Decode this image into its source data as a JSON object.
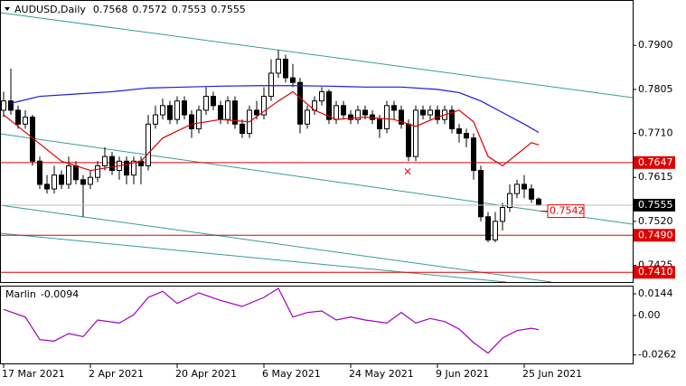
{
  "chart_data": [
    {
      "type": "candlestick",
      "title": "AUDUSD,Daily",
      "ylim": [
        0.7389,
        0.7998
      ],
      "xlim": [
        -0.5,
        87
      ],
      "yticks": [
        {
          "value": 0.79,
          "label": "0.7900"
        },
        {
          "value": 0.7805,
          "label": "0.7805"
        },
        {
          "value": 0.771,
          "label": "0.7710"
        },
        {
          "value": 0.7615,
          "label": "0.7615"
        },
        {
          "value": 0.752,
          "label": "0.7520"
        },
        {
          "value": 0.7425,
          "label": "0.7425"
        }
      ],
      "xticks": [
        {
          "value": 0,
          "label": "17 Mar 2021"
        },
        {
          "value": 12,
          "label": "2 Apr 2021"
        },
        {
          "value": 24,
          "label": "20 Apr 2021"
        },
        {
          "value": 36,
          "label": "6 May 2021"
        },
        {
          "value": 48,
          "label": "24 May 2021"
        },
        {
          "value": 60,
          "label": "9 Jun 2021"
        },
        {
          "value": 72,
          "label": "25 Jun 2021"
        }
      ],
      "ohlc": [
        [
          0.776,
          0.78,
          0.7745,
          0.778
        ],
        [
          0.778,
          0.785,
          0.775,
          0.776
        ],
        [
          0.776,
          0.777,
          0.772,
          0.773
        ],
        [
          0.773,
          0.776,
          0.772,
          0.7745
        ],
        [
          0.7745,
          0.775,
          0.764,
          0.765
        ],
        [
          0.765,
          0.766,
          0.759,
          0.76
        ],
        [
          0.76,
          0.762,
          0.758,
          0.759
        ],
        [
          0.759,
          0.764,
          0.758,
          0.762
        ],
        [
          0.762,
          0.763,
          0.759,
          0.76
        ],
        [
          0.76,
          0.766,
          0.759,
          0.764
        ],
        [
          0.764,
          0.765,
          0.76,
          0.761
        ],
        [
          0.761,
          0.762,
          0.753,
          0.76
        ],
        [
          0.76,
          0.763,
          0.759,
          0.7615
        ],
        [
          0.7615,
          0.765,
          0.7605,
          0.764
        ],
        [
          0.764,
          0.768,
          0.763,
          0.766
        ],
        [
          0.766,
          0.767,
          0.762,
          0.763
        ],
        [
          0.763,
          0.766,
          0.761,
          0.765
        ],
        [
          0.765,
          0.766,
          0.76,
          0.762
        ],
        [
          0.762,
          0.766,
          0.76,
          0.765
        ],
        [
          0.765,
          0.766,
          0.76,
          0.764
        ],
        [
          0.764,
          0.775,
          0.763,
          0.773
        ],
        [
          0.773,
          0.777,
          0.772,
          0.775
        ],
        [
          0.775,
          0.7785,
          0.774,
          0.777
        ],
        [
          0.777,
          0.778,
          0.773,
          0.774
        ],
        [
          0.774,
          0.779,
          0.773,
          0.778
        ],
        [
          0.778,
          0.779,
          0.774,
          0.775
        ],
        [
          0.775,
          0.776,
          0.77,
          0.772
        ],
        [
          0.772,
          0.777,
          0.771,
          0.776
        ],
        [
          0.776,
          0.781,
          0.775,
          0.779
        ],
        [
          0.779,
          0.78,
          0.776,
          0.777
        ],
        [
          0.777,
          0.778,
          0.773,
          0.774
        ],
        [
          0.774,
          0.779,
          0.773,
          0.778
        ],
        [
          0.778,
          0.779,
          0.772,
          0.773
        ],
        [
          0.773,
          0.774,
          0.77,
          0.771
        ],
        [
          0.771,
          0.777,
          0.77,
          0.776
        ],
        [
          0.776,
          0.778,
          0.774,
          0.775
        ],
        [
          0.775,
          0.781,
          0.774,
          0.779
        ],
        [
          0.779,
          0.787,
          0.778,
          0.784
        ],
        [
          0.784,
          0.789,
          0.783,
          0.787
        ],
        [
          0.787,
          0.788,
          0.782,
          0.783
        ],
        [
          0.783,
          0.786,
          0.781,
          0.782
        ],
        [
          0.782,
          0.783,
          0.771,
          0.773
        ],
        [
          0.773,
          0.777,
          0.772,
          0.776
        ],
        [
          0.776,
          0.779,
          0.775,
          0.778
        ],
        [
          0.778,
          0.781,
          0.777,
          0.78
        ],
        [
          0.78,
          0.7805,
          0.773,
          0.774
        ],
        [
          0.774,
          0.778,
          0.773,
          0.777
        ],
        [
          0.777,
          0.778,
          0.774,
          0.775
        ],
        [
          0.775,
          0.776,
          0.773,
          0.774
        ],
        [
          0.774,
          0.777,
          0.773,
          0.776
        ],
        [
          0.776,
          0.777,
          0.774,
          0.775
        ],
        [
          0.775,
          0.776,
          0.773,
          0.774
        ],
        [
          0.774,
          0.775,
          0.77,
          0.772
        ],
        [
          0.772,
          0.778,
          0.771,
          0.777
        ],
        [
          0.777,
          0.778,
          0.774,
          0.776
        ],
        [
          0.776,
          0.777,
          0.772,
          0.773
        ],
        [
          0.773,
          0.774,
          0.765,
          0.766
        ],
        [
          0.766,
          0.777,
          0.765,
          0.776
        ],
        [
          0.776,
          0.777,
          0.774,
          0.775
        ],
        [
          0.775,
          0.777,
          0.774,
          0.776
        ],
        [
          0.776,
          0.777,
          0.773,
          0.774
        ],
        [
          0.774,
          0.777,
          0.773,
          0.776
        ],
        [
          0.776,
          0.777,
          0.771,
          0.772
        ],
        [
          0.772,
          0.773,
          0.769,
          0.771
        ],
        [
          0.771,
          0.772,
          0.768,
          0.77
        ],
        [
          0.77,
          0.771,
          0.761,
          0.763
        ],
        [
          0.763,
          0.764,
          0.752,
          0.753
        ],
        [
          0.753,
          0.754,
          0.7475,
          0.748
        ],
        [
          0.748,
          0.754,
          0.7475,
          0.752
        ],
        [
          0.752,
          0.756,
          0.75,
          0.755
        ],
        [
          0.755,
          0.76,
          0.754,
          0.758
        ],
        [
          0.758,
          0.761,
          0.757,
          0.76
        ],
        [
          0.76,
          0.762,
          0.757,
          0.759
        ],
        [
          0.759,
          0.76,
          0.756,
          0.7568
        ],
        [
          0.7568,
          0.7572,
          0.7553,
          0.7555
        ]
      ],
      "lines": [
        {
          "color": "#1a1ae0",
          "x": [
            1,
            5,
            10,
            15,
            20,
            25,
            30,
            35,
            40,
            45,
            50,
            55,
            60,
            63,
            66,
            69,
            72,
            74
          ],
          "values": [
            0.7775,
            0.779,
            0.7795,
            0.78,
            0.7808,
            0.781,
            0.7812,
            0.7813,
            0.7813,
            0.7812,
            0.781,
            0.781,
            0.7805,
            0.7798,
            0.778,
            0.7755,
            0.773,
            0.7712
          ]
        },
        {
          "color": "#e00000",
          "x": [
            0,
            4,
            8,
            12,
            16,
            19,
            22,
            26,
            30,
            34,
            38,
            40,
            43,
            46,
            50,
            54,
            57,
            60,
            63,
            65,
            67,
            69,
            71,
            73,
            74
          ],
          "values": [
            0.775,
            0.77,
            0.765,
            0.763,
            0.764,
            0.765,
            0.77,
            0.773,
            0.774,
            0.7735,
            0.778,
            0.78,
            0.776,
            0.774,
            0.7745,
            0.774,
            0.7725,
            0.7745,
            0.776,
            0.7735,
            0.766,
            0.764,
            0.7665,
            0.769,
            0.7685
          ]
        }
      ],
      "levels": [
        {
          "value": 0.7647,
          "label": "0.7647"
        },
        {
          "value": 0.749,
          "label": "0.7490"
        },
        {
          "value": 0.741,
          "label": "0.7410"
        }
      ],
      "annotation": {
        "value": 0.7542,
        "label": "0.7542"
      }
    },
    {
      "type": "line",
      "title": "Marlin",
      "color": "#a000c0",
      "ylim": [
        -0.0318,
        0.0198
      ],
      "xlim": [
        -0.5,
        87
      ],
      "yticks": [
        0.0144,
        {
          "value": 0,
          "label": "0.00"
        },
        -0.0262
      ],
      "x": [
        0,
        3,
        5,
        7,
        9,
        11,
        13,
        16,
        18,
        20,
        22,
        24,
        27,
        30,
        33,
        36,
        38,
        40,
        42,
        44,
        46,
        48,
        50,
        53,
        55,
        57,
        59,
        61,
        63,
        65,
        67,
        69,
        71,
        73,
        74
      ],
      "values": [
        0.004,
        -0.001,
        -0.016,
        -0.017,
        -0.012,
        -0.014,
        -0.003,
        -0.005,
        0.0005,
        0.012,
        0.016,
        0.008,
        0.015,
        0.01,
        0.006,
        0.012,
        0.018,
        -0.001,
        0.002,
        0.003,
        -0.003,
        -0.001,
        -0.003,
        -0.005,
        0.002,
        -0.005,
        -0.002,
        -0.004,
        -0.009,
        -0.018,
        -0.025,
        -0.015,
        -0.01,
        -0.0085,
        -0.0094
      ]
    }
  ]
}
